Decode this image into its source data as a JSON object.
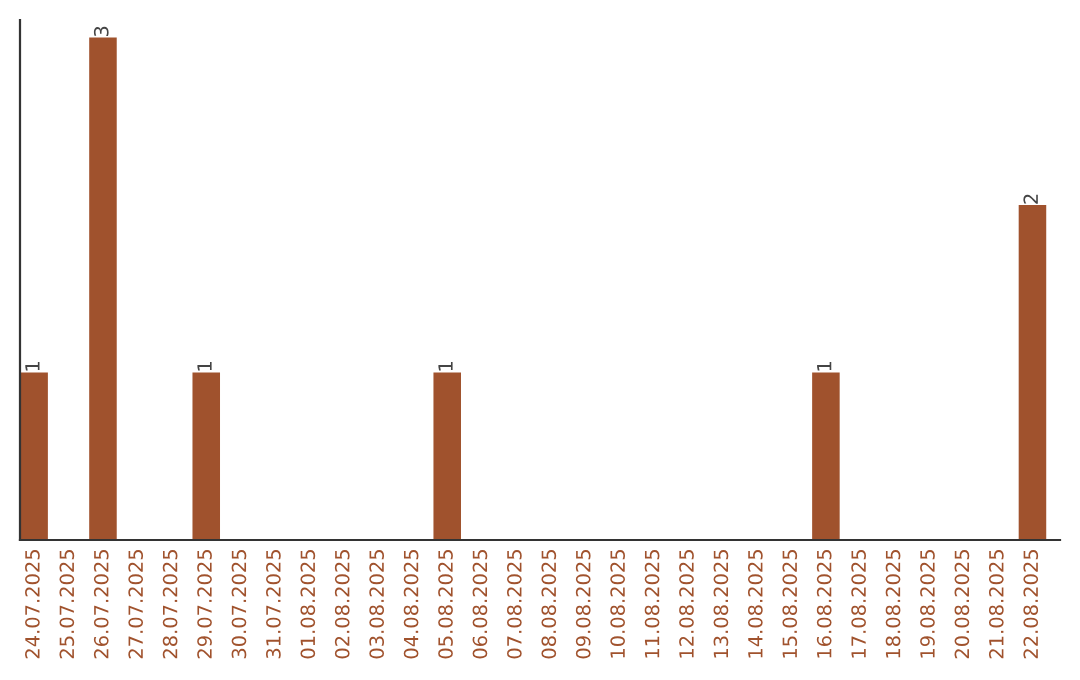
{
  "chart_data": {
    "type": "bar",
    "categories": [
      "24.07.2025",
      "25.07.2025",
      "26.07.2025",
      "27.07.2025",
      "28.07.2025",
      "29.07.2025",
      "30.07.2025",
      "31.07.2025",
      "01.08.2025",
      "02.08.2025",
      "03.08.2025",
      "04.08.2025",
      "05.08.2025",
      "06.08.2025",
      "07.08.2025",
      "08.08.2025",
      "09.08.2025",
      "10.08.2025",
      "11.08.2025",
      "12.08.2025",
      "13.08.2025",
      "14.08.2025",
      "15.08.2025",
      "16.08.2025",
      "17.08.2025",
      "18.08.2025",
      "19.08.2025",
      "20.08.2025",
      "21.08.2025",
      "22.08.2025"
    ],
    "values": [
      1,
      0,
      3,
      0,
      0,
      1,
      0,
      0,
      0,
      0,
      0,
      0,
      1,
      0,
      0,
      0,
      0,
      0,
      0,
      0,
      0,
      0,
      0,
      1,
      0,
      0,
      0,
      0,
      0,
      2
    ],
    "value_labels": [
      "1",
      null,
      "3",
      null,
      null,
      "1",
      null,
      null,
      null,
      null,
      null,
      null,
      "1",
      null,
      null,
      null,
      null,
      null,
      null,
      null,
      null,
      null,
      null,
      "1",
      null,
      null,
      null,
      null,
      null,
      "2"
    ],
    "color": "#a0522d",
    "tick_labels": "x",
    "grid": false,
    "legend": false
  }
}
